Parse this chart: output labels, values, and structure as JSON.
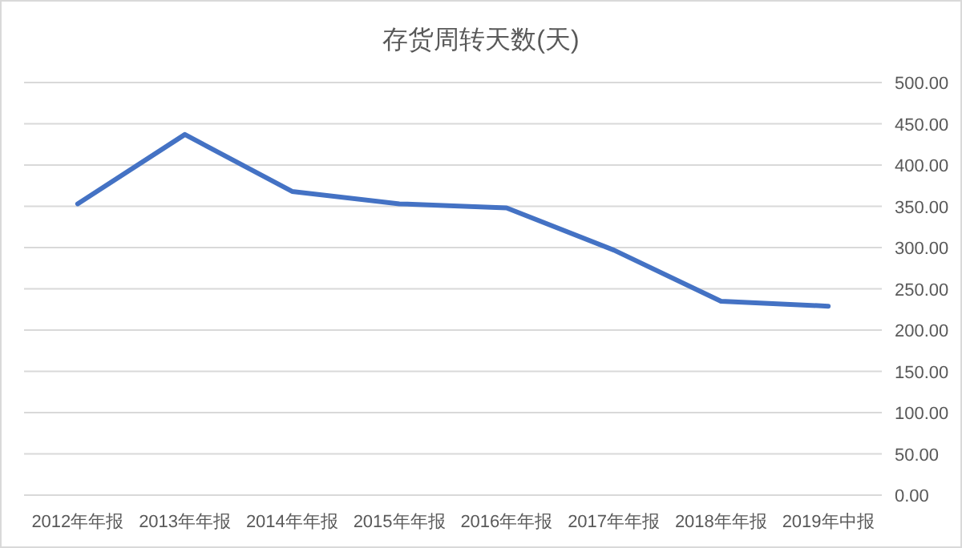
{
  "chart_data": {
    "type": "line",
    "title": "存货周转天数(天)",
    "categories": [
      "2012年年报",
      "2013年年报",
      "2014年年报",
      "2015年年报",
      "2016年年报",
      "2017年年报",
      "2018年年报",
      "2019年中报"
    ],
    "series": [
      {
        "color": "#4472c4",
        "values": [
          353,
          437,
          368,
          353,
          348,
          297,
          235,
          229
        ]
      }
    ],
    "ylim": [
      0,
      500
    ],
    "yticks": [
      {
        "value": 0,
        "label": "0.00"
      },
      {
        "value": 50,
        "label": "50.00"
      },
      {
        "value": 100,
        "label": "100.00"
      },
      {
        "value": 150,
        "label": "150.00"
      },
      {
        "value": 200,
        "label": "200.00"
      },
      {
        "value": 250,
        "label": "250.00"
      },
      {
        "value": 300,
        "label": "300.00"
      },
      {
        "value": 350,
        "label": "350.00"
      },
      {
        "value": 400,
        "label": "400.00"
      },
      {
        "value": 450,
        "label": "450.00"
      },
      {
        "value": 500,
        "label": "500.00"
      }
    ],
    "grid": "y",
    "marker": "none",
    "line_style": "solid"
  }
}
